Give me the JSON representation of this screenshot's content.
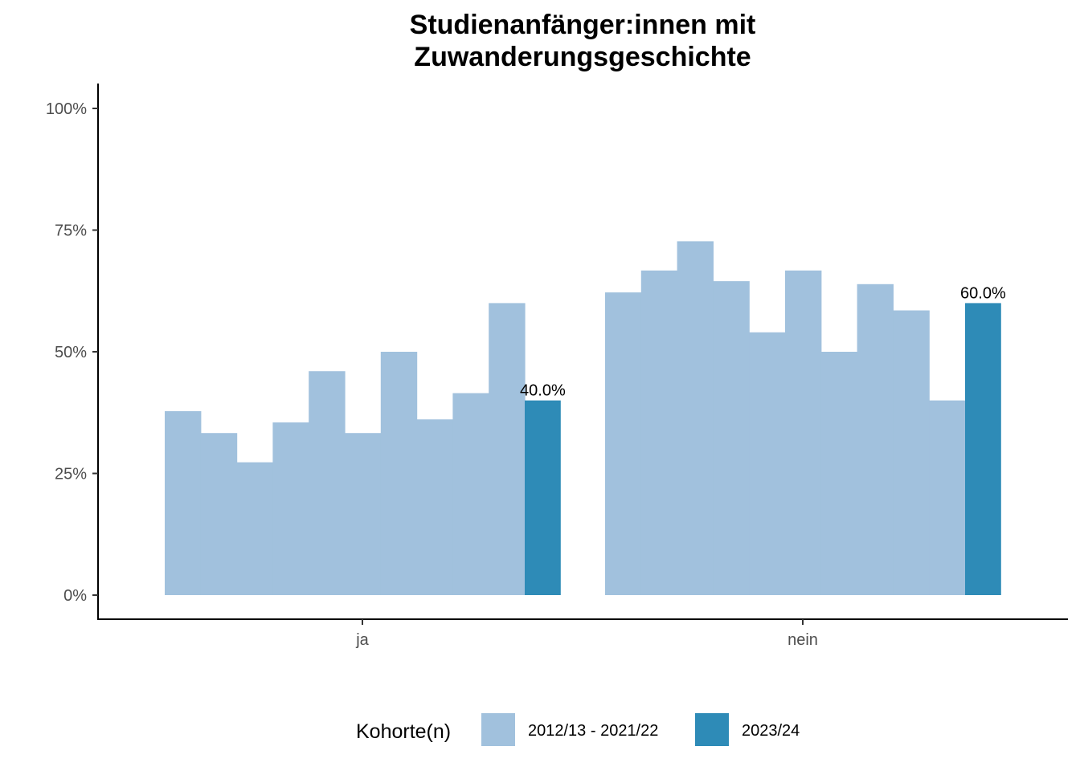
{
  "chart_data": {
    "type": "bar",
    "title_lines": [
      "Studienanfänger:innen mit",
      "Zuwanderungsgeschichte"
    ],
    "xlabel": "",
    "ylabel": "",
    "ylim": [
      0,
      1
    ],
    "y_ticks": [
      {
        "value": 0,
        "label": "0%"
      },
      {
        "value": 0.25,
        "label": "25%"
      },
      {
        "value": 0.5,
        "label": "50%"
      },
      {
        "value": 0.75,
        "label": "75%"
      },
      {
        "value": 1,
        "label": "100%"
      }
    ],
    "grid": false,
    "legend": {
      "position": "bottom",
      "title": "Kohorte(n)",
      "entries": [
        {
          "label": "2012/13 - 2021/22",
          "color": "#a1c1dd"
        },
        {
          "label": "2023/24",
          "color": "#2e8bb7"
        }
      ]
    },
    "categories": [
      {
        "label": "ja",
        "history_values": [
          0.378,
          0.333,
          0.273,
          0.355,
          0.46,
          0.333,
          0.5,
          0.361,
          0.415,
          0.6
        ],
        "current_value": 0.4,
        "current_label": "40.0%"
      },
      {
        "label": "nein",
        "history_values": [
          0.622,
          0.667,
          0.727,
          0.645,
          0.54,
          0.667,
          0.5,
          0.639,
          0.585,
          0.4
        ],
        "current_value": 0.6,
        "current_label": "60.0%"
      }
    ],
    "colors": {
      "history": "#a1c1dd",
      "current": "#2e8bb7"
    }
  }
}
